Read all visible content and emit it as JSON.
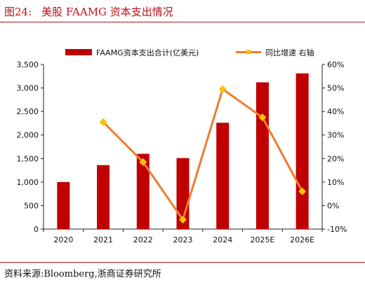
{
  "figure": {
    "label": "图24:",
    "title": "美股 FAAMG 资本支出情况",
    "source": "资料来源:Bloomberg,浙商证券研究所"
  },
  "chart_data": {
    "type": "bar",
    "categories": [
      "2020",
      "2021",
      "2022",
      "2023",
      "2024",
      "2025E",
      "2026E"
    ],
    "series": [
      {
        "name": "FAAMG资本支出合计(亿美元)",
        "type": "bar",
        "axis": "left",
        "color": "#c00000",
        "values": [
          1000,
          1360,
          1600,
          1510,
          2260,
          3120,
          3310
        ]
      },
      {
        "name": "同比增速 右轴",
        "type": "line",
        "axis": "right",
        "color": "#ed7d31",
        "marker_color": "#ffc000",
        "values": [
          null,
          35.5,
          18.5,
          -6.0,
          49.5,
          37.5,
          6.0
        ]
      }
    ],
    "ylim": [
      0,
      3500
    ],
    "yticks": [
      "0",
      "500",
      "1,000",
      "1,500",
      "2,000",
      "2,500",
      "3,000",
      "3,500"
    ],
    "y2lim": [
      -10,
      60
    ],
    "y2ticks": [
      "-10%",
      "0%",
      "10%",
      "20%",
      "30%",
      "40%",
      "50%",
      "60%"
    ],
    "legend_position": "top",
    "grid": false
  }
}
